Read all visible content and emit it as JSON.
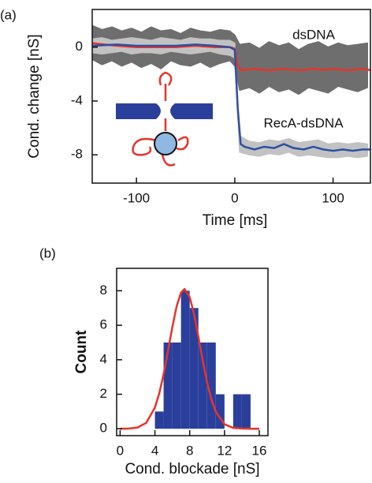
{
  "chart_data": [
    {
      "type": "line",
      "panel_label": "(a)",
      "xlabel": "Time [ms]",
      "ylabel": "Cond. change [nS]",
      "xlim": [
        -145,
        138
      ],
      "ylim": [
        -10.1,
        2.8
      ],
      "xticks": [
        -100,
        0,
        100
      ],
      "yticks": [
        -8,
        -4,
        0
      ],
      "bands": [
        {
          "color": "#6e6e6e",
          "x": [
            -145,
            -135,
            -125,
            -115,
            -105,
            -95,
            -85,
            -75,
            -65,
            -55,
            -45,
            -35,
            -25,
            -15,
            -5,
            0,
            5,
            15,
            25,
            35,
            45,
            55,
            65,
            75,
            85,
            95,
            105,
            115,
            125,
            135
          ],
          "upper": [
            1.6,
            1.3,
            1.5,
            1.2,
            1.4,
            1.1,
            1.5,
            1.2,
            1.3,
            1.0,
            1.4,
            1.2,
            1.1,
            1.3,
            1.2,
            0.9,
            0.2,
            0.3,
            -0.1,
            0.4,
            0.1,
            0.3,
            -0.2,
            0.2,
            0.4,
            0.0,
            0.3,
            0.1,
            0.2,
            0.3
          ],
          "lower": [
            -0.9,
            -1.3,
            -1.0,
            -1.4,
            -1.1,
            -1.5,
            -1.2,
            -1.6,
            -1.0,
            -1.3,
            -1.4,
            -1.1,
            -1.5,
            -1.2,
            -1.0,
            -1.4,
            -3.2,
            -3.0,
            -3.4,
            -2.9,
            -3.3,
            -3.1,
            -3.5,
            -3.0,
            -3.2,
            -3.4,
            -2.9,
            -3.1,
            -3.3,
            -3.0
          ]
        },
        {
          "color": "#c2c2c2",
          "x": [
            -145,
            -135,
            -125,
            -115,
            -105,
            -95,
            -85,
            -75,
            -65,
            -55,
            -45,
            -35,
            -25,
            -15,
            -5,
            0,
            5,
            15,
            25,
            35,
            45,
            55,
            65,
            75,
            85,
            95,
            105,
            115,
            125,
            135
          ],
          "upper": [
            0.6,
            0.7,
            0.5,
            0.6,
            0.7,
            0.6,
            0.5,
            0.7,
            0.6,
            0.5,
            0.7,
            0.6,
            0.6,
            0.5,
            0.5,
            0.3,
            -6.6,
            -7.0,
            -7.1,
            -6.9,
            -7.0,
            -6.8,
            -7.1,
            -7.0,
            -6.9,
            -7.2,
            -7.1,
            -7.2,
            -7.1,
            -7.2
          ],
          "lower": [
            -0.4,
            -0.5,
            -0.4,
            -0.3,
            -0.5,
            -0.4,
            -0.4,
            -0.5,
            -0.3,
            -0.4,
            -0.5,
            -0.4,
            -0.3,
            -0.5,
            -0.6,
            -0.8,
            -7.8,
            -8.0,
            -8.1,
            -7.9,
            -8.0,
            -7.8,
            -8.1,
            -8.0,
            -8.1,
            -8.2,
            -8.2,
            -8.1,
            -8.2,
            -8.1
          ]
        }
      ],
      "x": [
        -145,
        -120,
        -100,
        -80,
        -60,
        -40,
        -20,
        -5,
        0,
        3,
        6,
        10,
        20,
        30,
        40,
        50,
        60,
        70,
        80,
        90,
        100,
        110,
        120,
        130,
        138
      ],
      "series": [
        {
          "name": "dsDNA",
          "color": "#e8332b",
          "values": [
            0.3,
            0.1,
            0,
            0,
            0,
            0.1,
            0,
            0,
            -0.1,
            -1.4,
            -1.7,
            -1.7,
            -1.6,
            -1.7,
            -1.7,
            -1.6,
            -1.7,
            -1.7,
            -1.6,
            -1.7,
            -1.6,
            -1.7,
            -1.7,
            -1.6,
            -1.7
          ]
        },
        {
          "name": "RecA-dsDNA",
          "color": "#2e4fa3",
          "values": [
            0.1,
            0.2,
            0.1,
            0.1,
            0.1,
            0.2,
            0.1,
            0,
            -0.2,
            -4.5,
            -7.2,
            -7.4,
            -7.6,
            -7.4,
            -7.5,
            -7.2,
            -7.5,
            -7.6,
            -7.4,
            -7.6,
            -7.7,
            -7.6,
            -7.7,
            -7.6,
            -7.6
          ]
        }
      ]
    },
    {
      "type": "histogram",
      "panel_label": "(b)",
      "xlabel": "Cond. blockade [nS]",
      "ylabel": "Count",
      "xlim": [
        -0.4,
        17
      ],
      "ylim": [
        -0.4,
        9.3
      ],
      "xticks": [
        0,
        4,
        8,
        12,
        16
      ],
      "yticks": [
        0,
        2,
        4,
        6,
        8
      ],
      "color": "#2a3f9b",
      "bins": [
        4,
        5,
        6,
        7,
        8,
        9,
        10,
        11,
        12,
        13,
        14,
        15
      ],
      "counts": [
        1,
        5,
        5,
        8,
        7,
        5,
        5,
        2,
        0,
        2,
        2
      ],
      "fit": {
        "color": "#e8332b",
        "x": [
          0,
          1,
          2,
          3,
          4,
          4.5,
          5,
          5.5,
          6,
          6.5,
          7,
          7.4,
          8,
          8.5,
          9,
          9.5,
          10,
          10.5,
          11,
          12,
          13,
          14,
          15,
          16
        ],
        "values": [
          0,
          0.01,
          0.07,
          0.34,
          1.23,
          2.05,
          3.16,
          4.49,
          5.88,
          7.1,
          7.89,
          8.1,
          7.64,
          6.65,
          5.33,
          3.94,
          2.69,
          1.69,
          0.98,
          0.26,
          0.05,
          0.01,
          0,
          0
        ]
      }
    }
  ]
}
